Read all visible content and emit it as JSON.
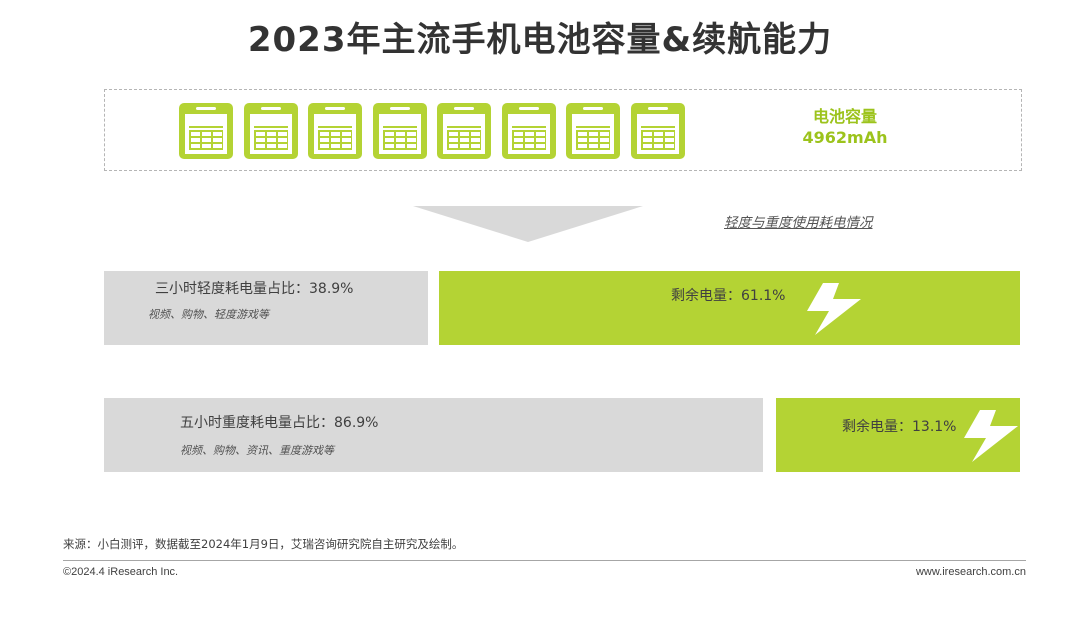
{
  "title": "2023年主流手机电池容量&续航能力",
  "battery": {
    "icon": "phone-icon",
    "phone_count": 8,
    "capacity_label": "电池容量",
    "capacity_value": "4962mAh"
  },
  "usage_link": "轻度与重度使用耗电情况",
  "chart_data": {
    "type": "bar",
    "categories": [
      "三小时轻度耗电量占比",
      "五小时重度耗电量占比"
    ],
    "series": [
      {
        "name": "",
        "values": [
          38.9,
          86.9
        ]
      },
      {
        "name": "剩余电量",
        "values": [
          61.1,
          13.1
        ]
      }
    ],
    "title": "",
    "unit": "%"
  },
  "light": {
    "used_label": "三小时轻度耗电量占比：38.9%",
    "used_desc": "视频、购物、轻度游戏等",
    "remain_label": "剩余电量：61.1%"
  },
  "heavy": {
    "used_label": "五小时重度耗电量占比：86.9%",
    "used_desc": "视频、购物、资讯、重度游戏等",
    "remain_label": "剩余电量：13.1%"
  },
  "colors": {
    "accent_green": "#b4d334",
    "label_green": "#9cc31c",
    "used_gray": "#d9d9d9"
  },
  "footer": {
    "source": "来源：小白测评，数据截至2024年1月9日，艾瑞咨询研究院自主研究及绘制。",
    "copyright": "©2024.4 iResearch Inc.",
    "website": "www.iresearch.com.cn"
  }
}
